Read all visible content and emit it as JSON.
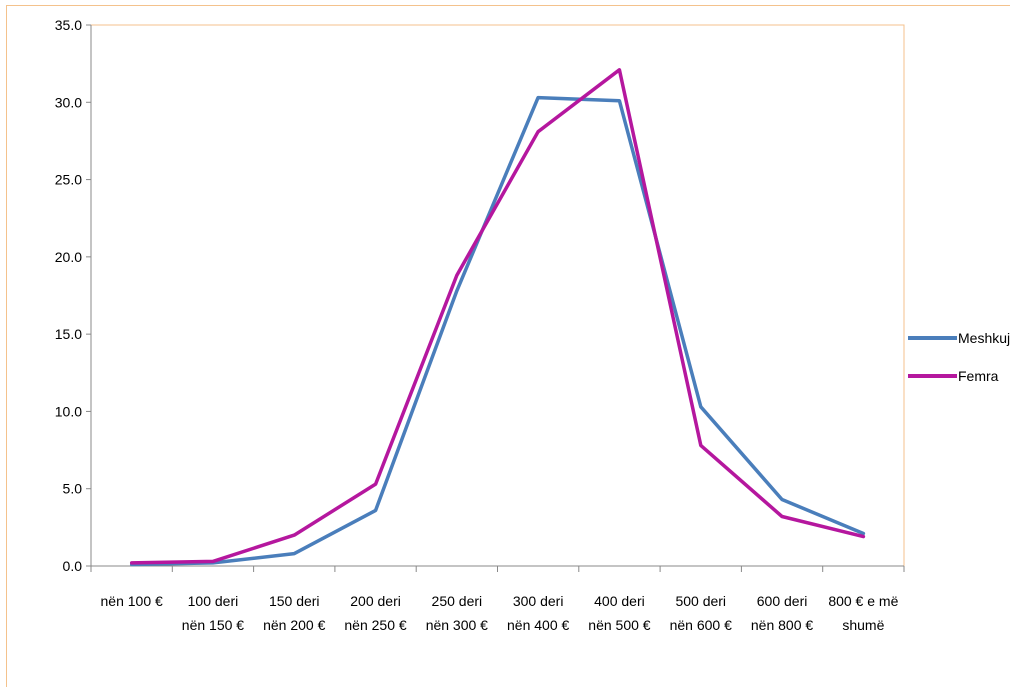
{
  "chart_data": {
    "type": "line",
    "title": "",
    "xlabel": "",
    "ylabel": "",
    "ylim": [
      0,
      35
    ],
    "yticks": [
      "0.0",
      "5.0",
      "10.0",
      "15.0",
      "20.0",
      "25.0",
      "30.0",
      "35.0"
    ],
    "categories": [
      [
        "nën",
        "100 €"
      ],
      [
        "100 deri",
        "nën 150 €"
      ],
      [
        "150 deri",
        "nën 200 €"
      ],
      [
        "200 deri",
        "nën 250 €"
      ],
      [
        "250 deri",
        "nën 300 €"
      ],
      [
        "300 deri",
        "nën 400 €"
      ],
      [
        "400 deri",
        "nën 500 €"
      ],
      [
        "500 deri",
        "nën 600 €"
      ],
      [
        "600 deri",
        "nën 800 €"
      ],
      [
        "800 € e më",
        "shumë"
      ]
    ],
    "series": [
      {
        "name": "Meshkuj",
        "color": "#4a7ebb",
        "values": [
          0.1,
          0.2,
          0.8,
          3.6,
          17.8,
          30.3,
          30.1,
          10.3,
          4.3,
          2.1
        ]
      },
      {
        "name": "Femra",
        "color": "#b5179e",
        "values": [
          0.2,
          0.3,
          2.0,
          5.3,
          18.8,
          28.1,
          32.1,
          7.8,
          3.2,
          1.9
        ]
      }
    ],
    "grid": false,
    "legend": "right"
  }
}
